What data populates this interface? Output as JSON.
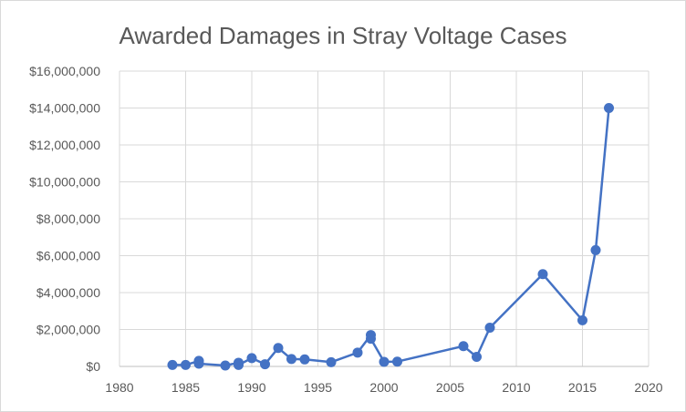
{
  "chart_data": {
    "type": "scatter",
    "title": "Awarded Damages in Stray Voltage Cases",
    "xlabel": "",
    "ylabel": "",
    "xlim": [
      1980,
      2020
    ],
    "ylim": [
      0,
      16000000
    ],
    "x_ticks": [
      1980,
      1985,
      1990,
      1995,
      2000,
      2005,
      2010,
      2015,
      2020
    ],
    "y_ticks": [
      0,
      2000000,
      4000000,
      6000000,
      8000000,
      10000000,
      12000000,
      14000000,
      16000000
    ],
    "x_tick_labels": [
      "1980",
      "1985",
      "1990",
      "1995",
      "2000",
      "2005",
      "2010",
      "2015",
      "2020"
    ],
    "y_tick_labels": [
      "$0",
      "$2,000,000",
      "$4,000,000",
      "$6,000,000",
      "$8,000,000",
      "$10,000,000",
      "$12,000,000",
      "$14,000,000",
      "$16,000,000"
    ],
    "grid": true,
    "legend": "none",
    "color": "#4472c4",
    "series": [
      {
        "points": [
          [
            1984,
            80000
          ],
          [
            1985,
            80000
          ],
          [
            1986,
            300000
          ],
          [
            1986,
            150000
          ],
          [
            1988,
            50000
          ],
          [
            1989,
            200000
          ],
          [
            1989,
            80000
          ],
          [
            1990,
            450000
          ],
          [
            1991,
            120000
          ],
          [
            1992,
            1000000
          ],
          [
            1993,
            400000
          ],
          [
            1994,
            380000
          ],
          [
            1996,
            230000
          ],
          [
            1998,
            750000
          ],
          [
            1999,
            1700000
          ],
          [
            1999,
            1500000
          ],
          [
            2000,
            250000
          ],
          [
            2001,
            260000
          ],
          [
            2006,
            1100000
          ],
          [
            2007,
            520000
          ],
          [
            2008,
            2100000
          ],
          [
            2012,
            5000000
          ],
          [
            2015,
            2500000
          ],
          [
            2016,
            6300000
          ],
          [
            2017,
            14000000
          ]
        ]
      }
    ]
  }
}
